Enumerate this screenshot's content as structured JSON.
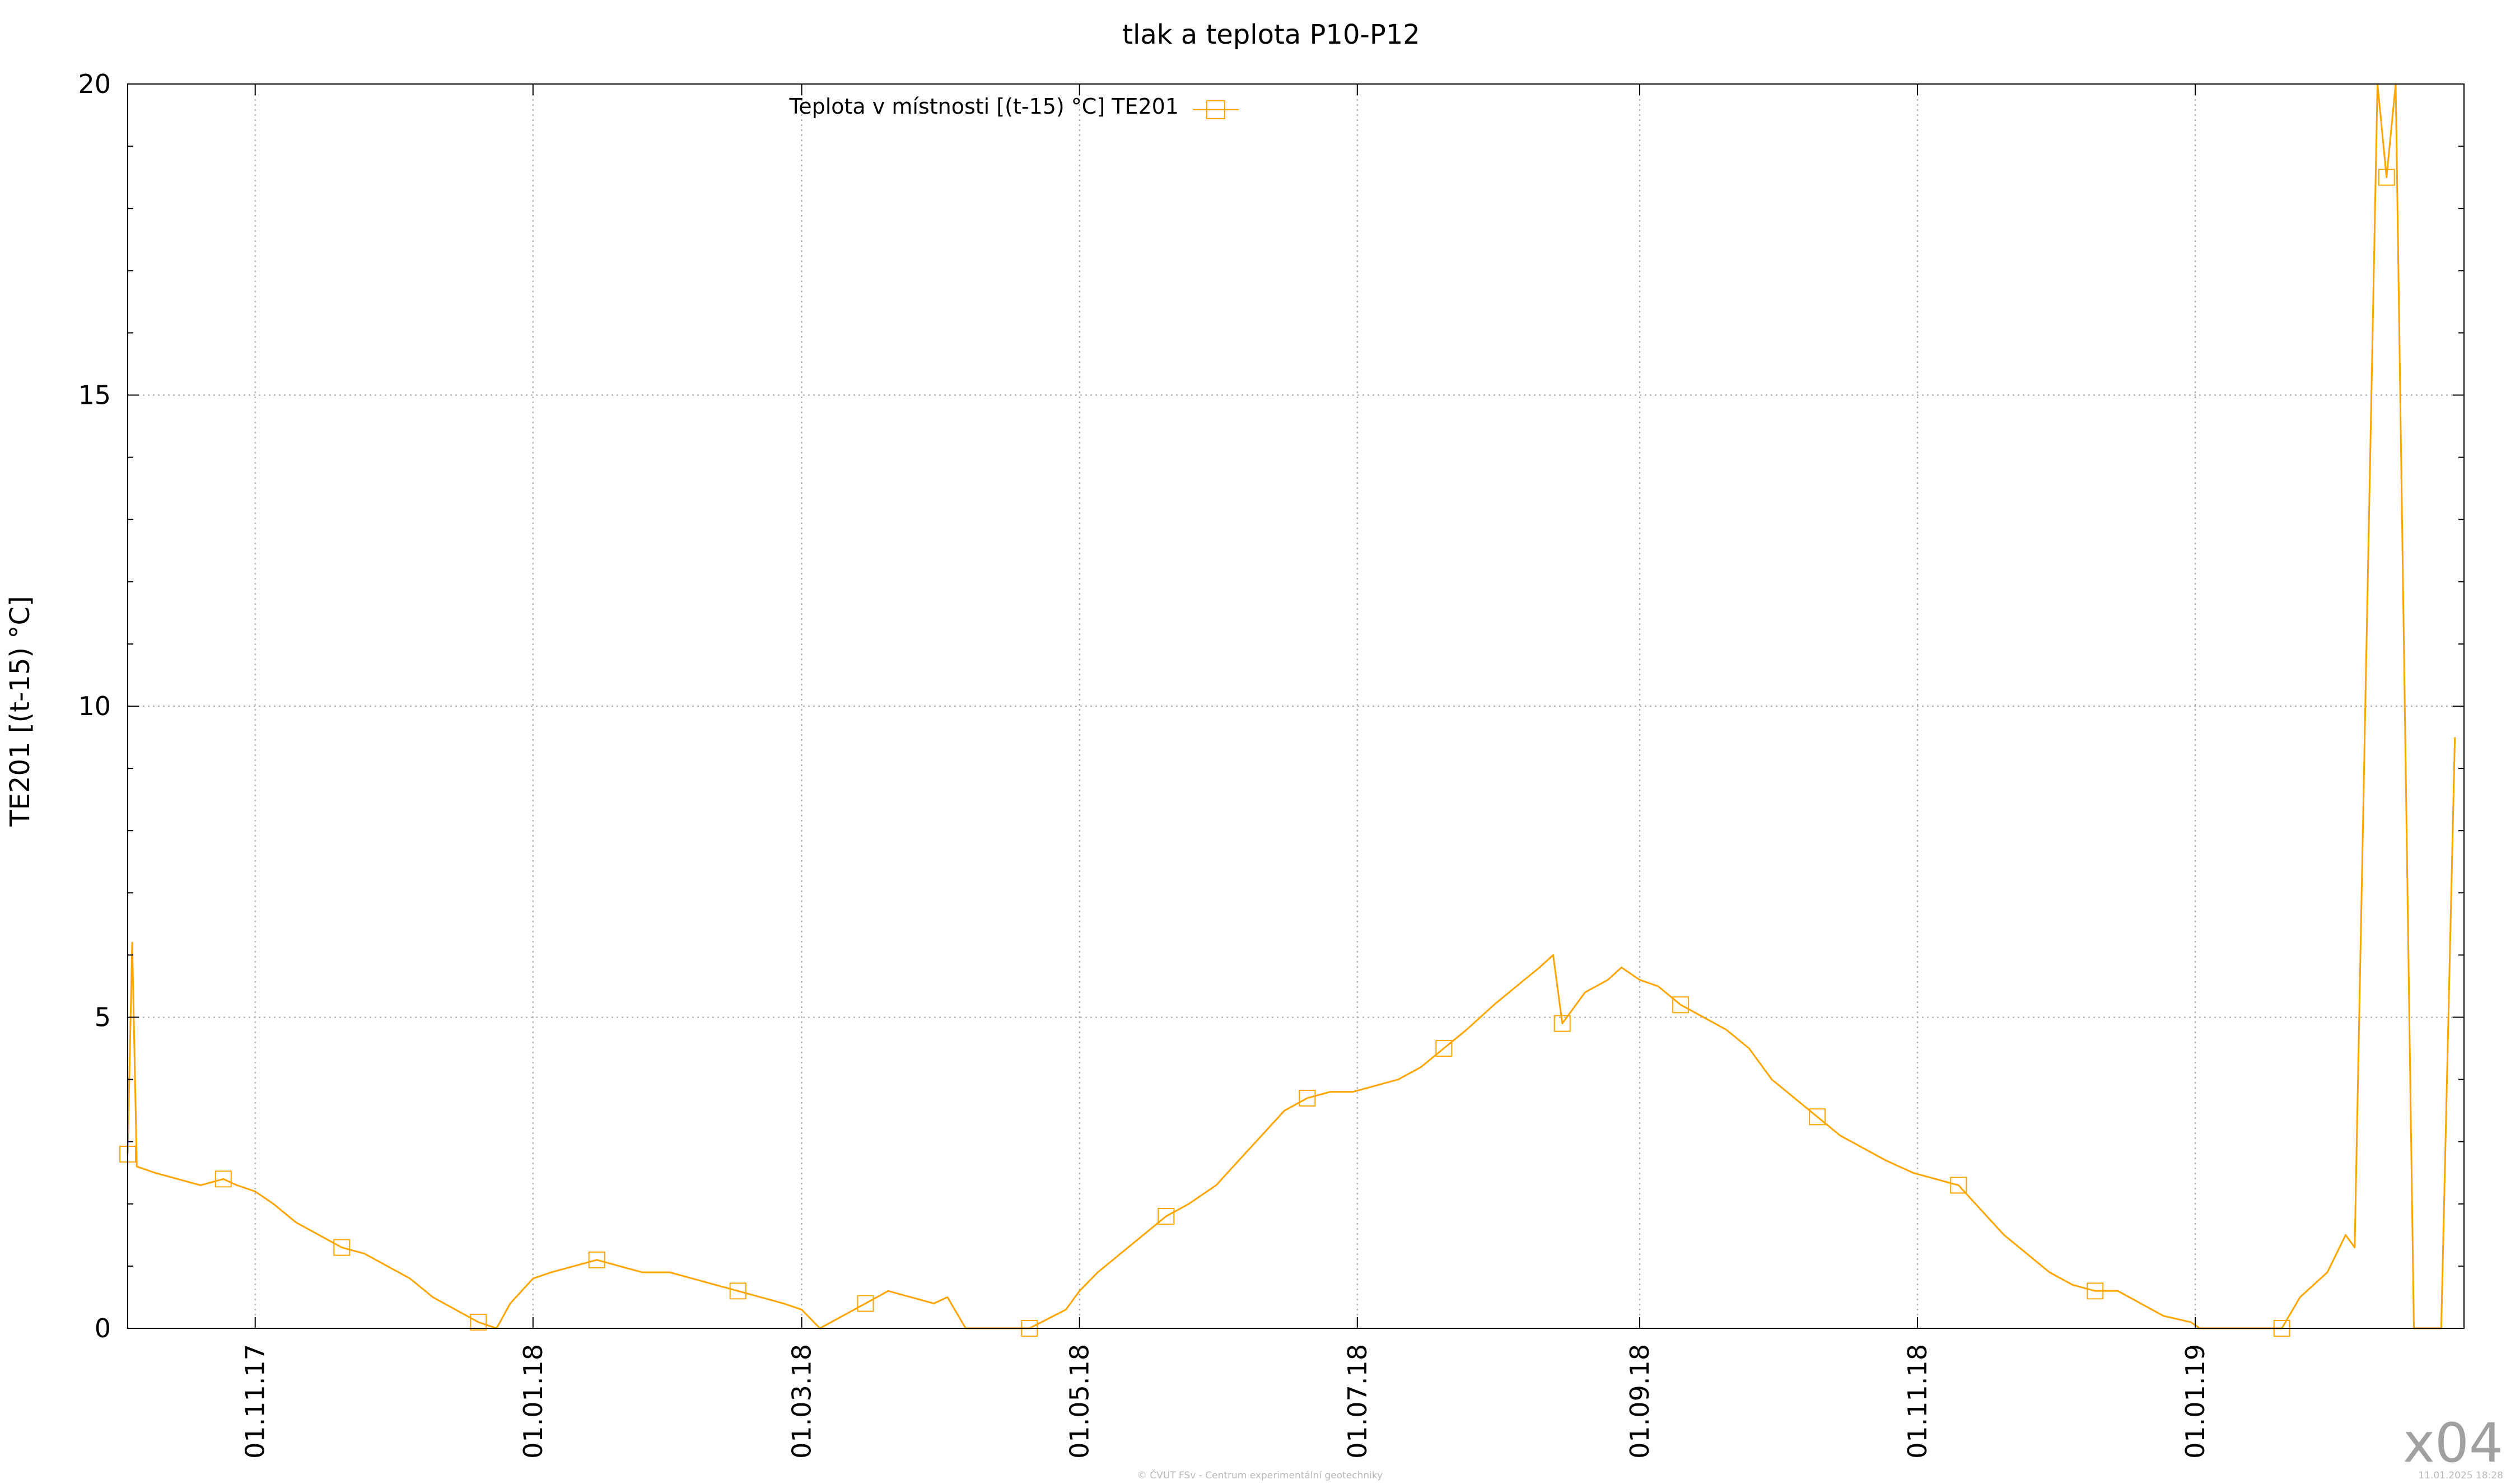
{
  "chart_data": {
    "type": "line",
    "title": "tlak a teplota P10-P12",
    "xlabel": "",
    "ylabel": "TE201 [(t-15) °C]",
    "x_range": [
      "2017-10-04",
      "2019-03-01"
    ],
    "ylim": [
      0,
      20
    ],
    "y_ticks": [
      "0",
      "5",
      "10",
      "15",
      "20"
    ],
    "x_ticks": [
      {
        "date": "2017-11-01",
        "label": "01.11.17"
      },
      {
        "date": "2018-01-01",
        "label": "01.01.18"
      },
      {
        "date": "2018-03-01",
        "label": "01.03.18"
      },
      {
        "date": "2018-05-01",
        "label": "01.05.18"
      },
      {
        "date": "2018-07-01",
        "label": "01.07.18"
      },
      {
        "date": "2018-09-01",
        "label": "01.09.18"
      },
      {
        "date": "2018-11-01",
        "label": "01.11.18"
      },
      {
        "date": "2019-01-01",
        "label": "01.01.19"
      }
    ],
    "grid": true,
    "legend_position": "top-center",
    "series": [
      {
        "name": "Teplota v místnosti [(t-15) °C] TE201",
        "color": "#ffa500",
        "marker": "square",
        "points": [
          [
            "2017-10-04",
            2.8
          ],
          [
            "2017-10-05",
            6.2
          ],
          [
            "2017-10-06",
            2.6
          ],
          [
            "2017-10-10",
            2.5
          ],
          [
            "2017-10-15",
            2.4
          ],
          [
            "2017-10-20",
            2.3
          ],
          [
            "2017-10-25",
            2.4
          ],
          [
            "2017-10-28",
            2.3
          ],
          [
            "2017-11-01",
            2.2
          ],
          [
            "2017-11-05",
            2.0
          ],
          [
            "2017-11-10",
            1.7
          ],
          [
            "2017-11-15",
            1.5
          ],
          [
            "2017-11-20",
            1.3
          ],
          [
            "2017-11-25",
            1.2
          ],
          [
            "2017-11-30",
            1.0
          ],
          [
            "2017-12-05",
            0.8
          ],
          [
            "2017-12-10",
            0.5
          ],
          [
            "2017-12-15",
            0.3
          ],
          [
            "2017-12-20",
            0.1
          ],
          [
            "2017-12-24",
            0.0
          ],
          [
            "2017-12-27",
            0.4
          ],
          [
            "2018-01-01",
            0.8
          ],
          [
            "2018-01-05",
            0.9
          ],
          [
            "2018-01-10",
            1.0
          ],
          [
            "2018-01-15",
            1.1
          ],
          [
            "2018-01-20",
            1.0
          ],
          [
            "2018-01-25",
            0.9
          ],
          [
            "2018-01-31",
            0.9
          ],
          [
            "2018-02-05",
            0.8
          ],
          [
            "2018-02-10",
            0.7
          ],
          [
            "2018-02-15",
            0.6
          ],
          [
            "2018-02-20",
            0.5
          ],
          [
            "2018-02-25",
            0.4
          ],
          [
            "2018-03-01",
            0.3
          ],
          [
            "2018-03-05",
            0.0
          ],
          [
            "2018-03-10",
            0.2
          ],
          [
            "2018-03-15",
            0.4
          ],
          [
            "2018-03-20",
            0.6
          ],
          [
            "2018-03-25",
            0.5
          ],
          [
            "2018-03-30",
            0.4
          ],
          [
            "2018-04-02",
            0.5
          ],
          [
            "2018-04-06",
            0.0
          ],
          [
            "2018-04-20",
            0.0
          ],
          [
            "2018-04-28",
            0.3
          ],
          [
            "2018-05-01",
            0.6
          ],
          [
            "2018-05-05",
            0.9
          ],
          [
            "2018-05-10",
            1.2
          ],
          [
            "2018-05-15",
            1.5
          ],
          [
            "2018-05-20",
            1.8
          ],
          [
            "2018-05-25",
            2.0
          ],
          [
            "2018-05-31",
            2.3
          ],
          [
            "2018-06-05",
            2.7
          ],
          [
            "2018-06-10",
            3.1
          ],
          [
            "2018-06-15",
            3.5
          ],
          [
            "2018-06-20",
            3.7
          ],
          [
            "2018-06-25",
            3.8
          ],
          [
            "2018-06-30",
            3.8
          ],
          [
            "2018-07-05",
            3.9
          ],
          [
            "2018-07-10",
            4.0
          ],
          [
            "2018-07-15",
            4.2
          ],
          [
            "2018-07-20",
            4.5
          ],
          [
            "2018-07-25",
            4.8
          ],
          [
            "2018-07-31",
            5.2
          ],
          [
            "2018-08-05",
            5.5
          ],
          [
            "2018-08-10",
            5.8
          ],
          [
            "2018-08-13",
            6.0
          ],
          [
            "2018-08-15",
            4.9
          ],
          [
            "2018-08-20",
            5.4
          ],
          [
            "2018-08-25",
            5.6
          ],
          [
            "2018-08-28",
            5.8
          ],
          [
            "2018-09-01",
            5.6
          ],
          [
            "2018-09-05",
            5.5
          ],
          [
            "2018-09-10",
            5.2
          ],
          [
            "2018-09-15",
            5.0
          ],
          [
            "2018-09-20",
            4.8
          ],
          [
            "2018-09-25",
            4.5
          ],
          [
            "2018-09-30",
            4.0
          ],
          [
            "2018-10-05",
            3.7
          ],
          [
            "2018-10-10",
            3.4
          ],
          [
            "2018-10-15",
            3.1
          ],
          [
            "2018-10-20",
            2.9
          ],
          [
            "2018-10-25",
            2.7
          ],
          [
            "2018-10-31",
            2.5
          ],
          [
            "2018-11-05",
            2.4
          ],
          [
            "2018-11-10",
            2.3
          ],
          [
            "2018-11-15",
            1.9
          ],
          [
            "2018-11-20",
            1.5
          ],
          [
            "2018-11-25",
            1.2
          ],
          [
            "2018-11-30",
            0.9
          ],
          [
            "2018-12-05",
            0.7
          ],
          [
            "2018-12-10",
            0.6
          ],
          [
            "2018-12-15",
            0.6
          ],
          [
            "2018-12-20",
            0.4
          ],
          [
            "2018-12-25",
            0.2
          ],
          [
            "2018-12-31",
            0.1
          ],
          [
            "2019-01-02",
            0.0
          ],
          [
            "2019-01-20",
            0.0
          ],
          [
            "2019-01-24",
            0.5
          ],
          [
            "2019-01-30",
            0.9
          ],
          [
            "2019-02-03",
            1.5
          ],
          [
            "2019-02-05",
            1.3
          ],
          [
            "2019-02-10",
            20.0
          ],
          [
            "2019-02-12",
            18.5
          ],
          [
            "2019-02-14",
            20.0
          ],
          [
            "2019-02-18",
            0.0
          ],
          [
            "2019-02-24",
            0.0
          ],
          [
            "2019-02-27",
            9.5
          ]
        ]
      }
    ]
  },
  "footer": {
    "watermark": "x04",
    "credit": "© ČVUT FSv - Centrum experimentální geotechniky",
    "timestamp": "11.01.2025 18:28"
  }
}
